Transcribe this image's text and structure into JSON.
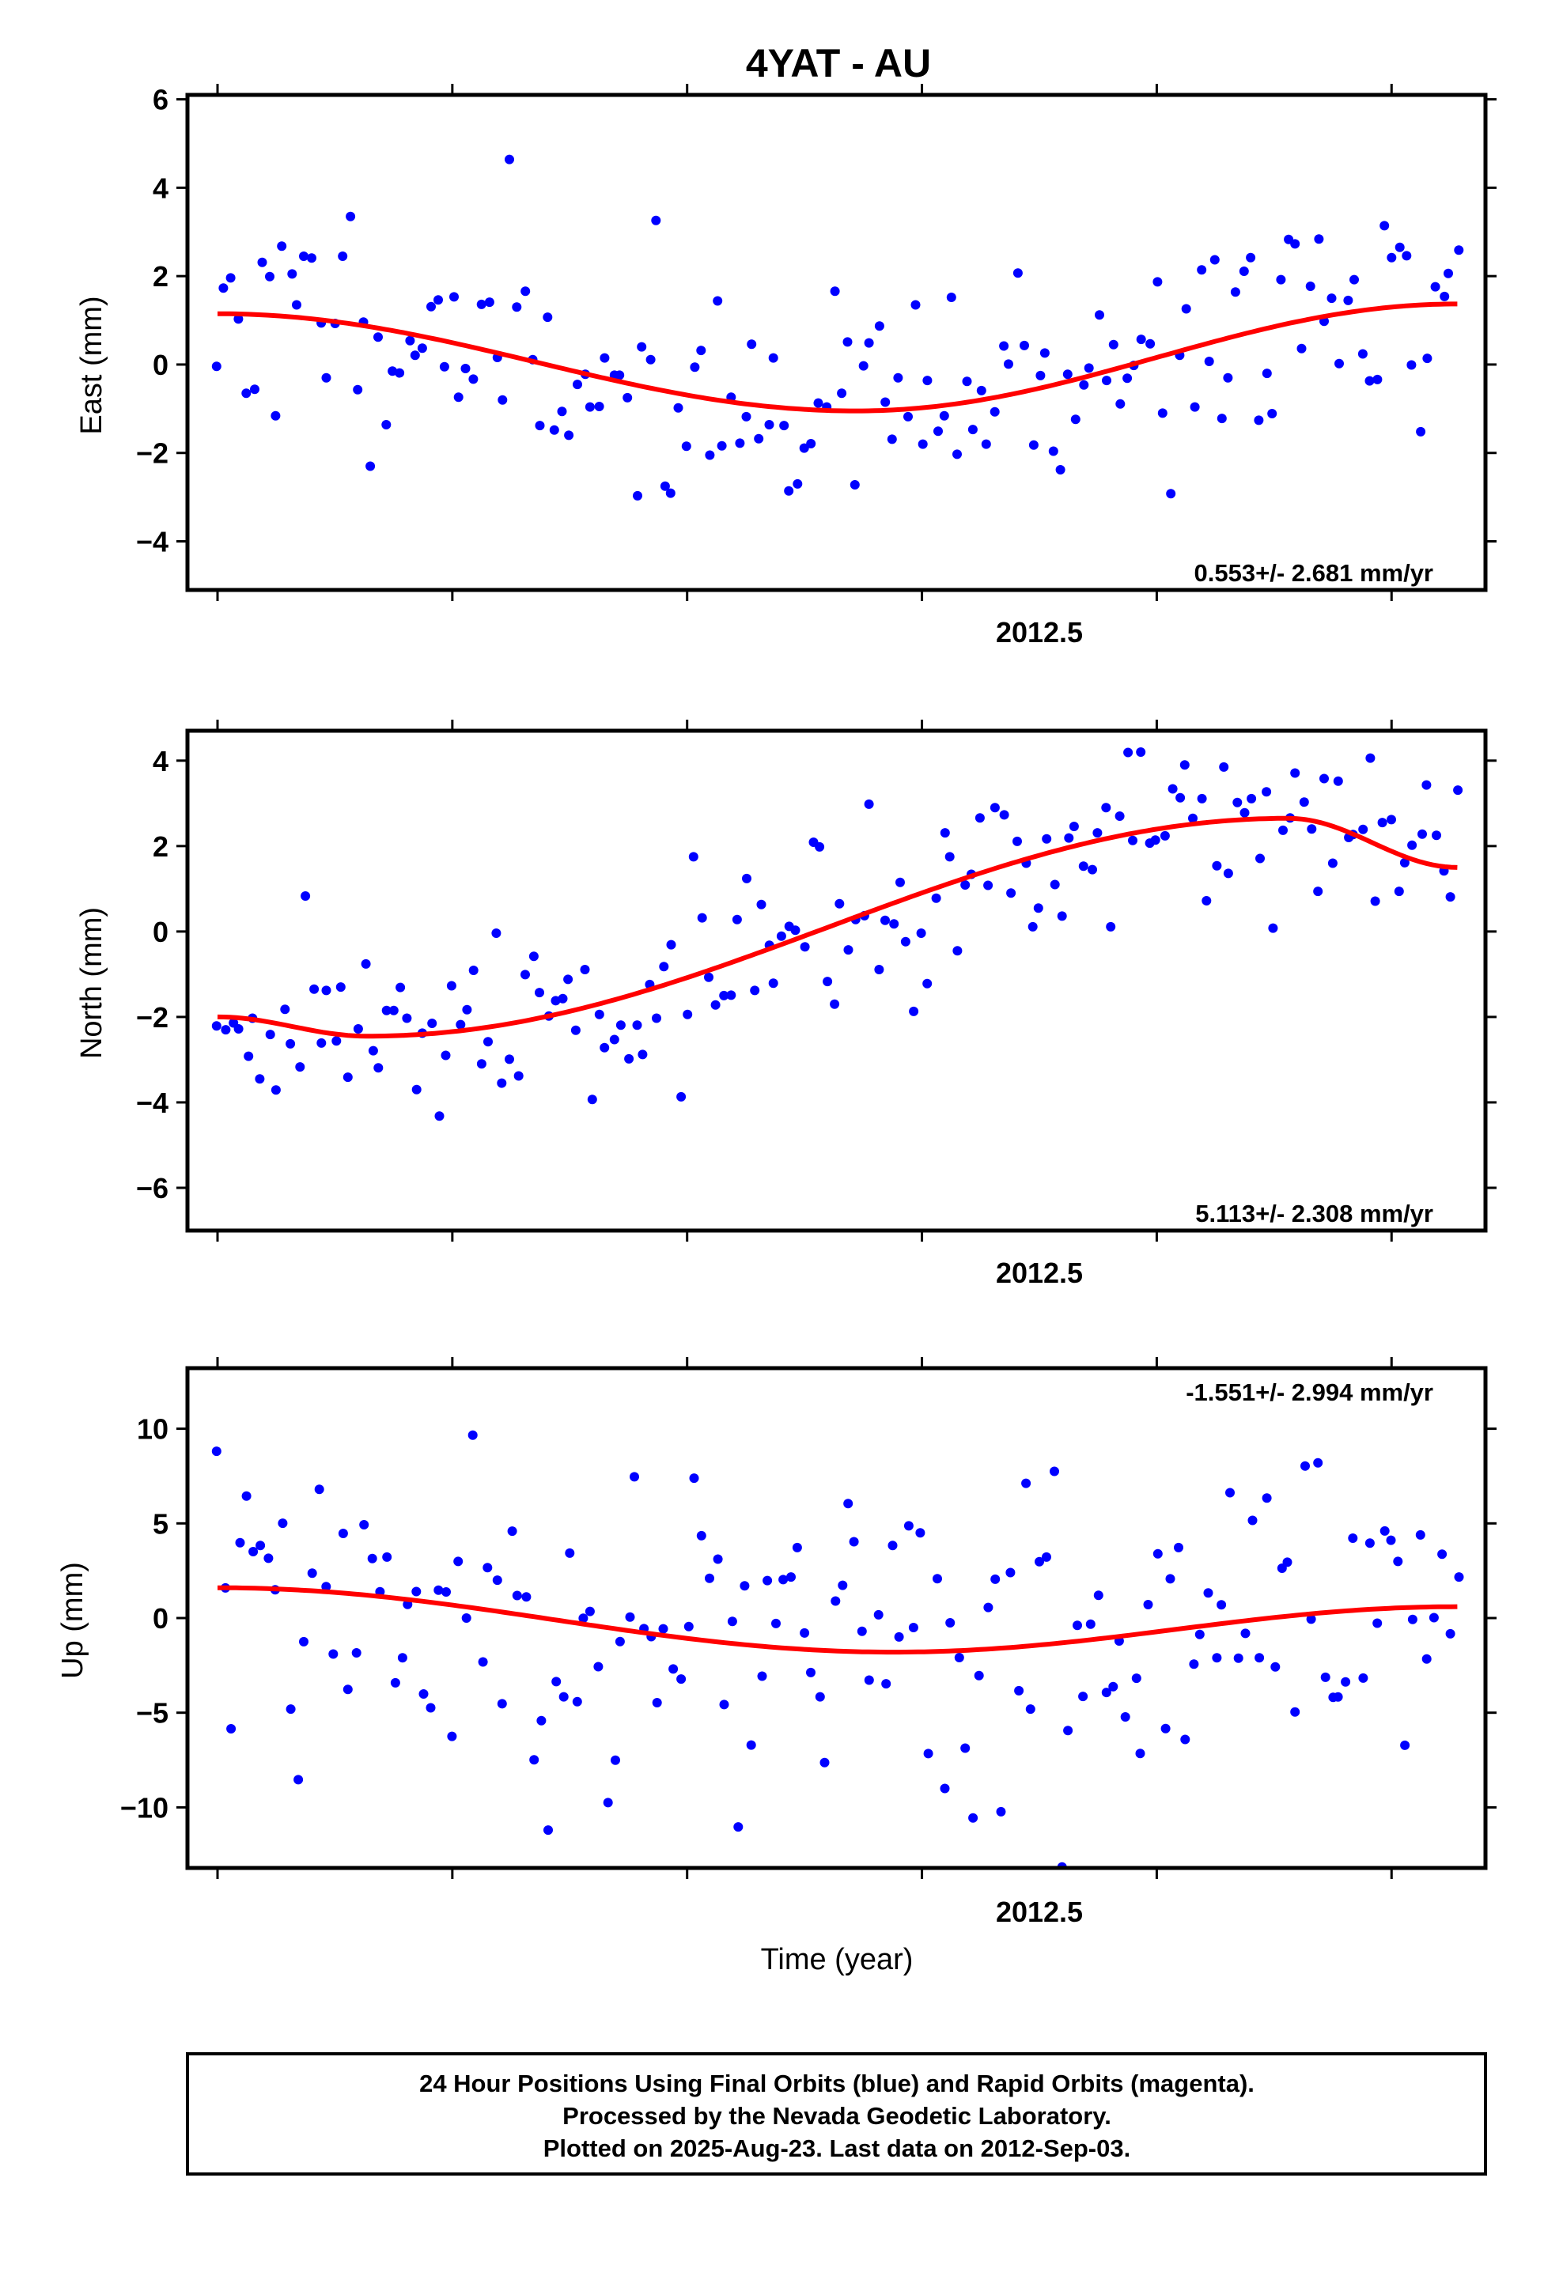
{
  "title": "4YAT - AU",
  "xlabel": "Time (year)",
  "footer": [
    "24 Hour Positions Using Final Orbits (blue) and Rapid Orbits (magenta).",
    "Processed by the Nevada Geodetic Laboratory.",
    "Plotted on 2025-Aug-23. Last data on 2012-Sep-03."
  ],
  "colors": {
    "data": "#0000ff",
    "fit": "#ff0000",
    "frame": "#000000"
  },
  "chart_data": [
    {
      "type": "scatter",
      "ylabel": "East (mm)",
      "ylim": [
        -5.1,
        6.1
      ],
      "yticks": [
        6,
        4,
        2,
        0,
        -2,
        -4
      ],
      "xlim": [
        2011.984,
        2012.675
      ],
      "xticks": [
        2012.0,
        2012.125,
        2012.25,
        2012.375,
        2012.5,
        2012.625
      ],
      "xticklabels": {
        "2012.5": "2012.5"
      },
      "rate": "0.553+/- 2.681 mm/yr",
      "fit_curve": {
        "x": [
          2012.0,
          2012.66
        ],
        "y_start": 1.15,
        "y_min": -1.05,
        "x_min": 2012.34,
        "y_end": 1.37
      },
      "series": [
        {
          "values": []
        }
      ]
    },
    {
      "type": "scatter",
      "ylabel": "North (mm)",
      "ylim": [
        -7.0,
        4.7
      ],
      "yticks": [
        4,
        2,
        0,
        -2,
        -4,
        -6
      ],
      "xlim": [
        2011.984,
        2012.675
      ],
      "xticks": [
        2012.0,
        2012.125,
        2012.25,
        2012.375,
        2012.5,
        2012.625
      ],
      "xticklabels": {
        "2012.5": "2012.5"
      },
      "rate": "5.113+/- 2.308 mm/yr",
      "fit_curve": {
        "x": [
          2012.0,
          2012.66
        ],
        "y_start": -2.0,
        "y_min": -2.45,
        "x_min": 2012.08,
        "y_max": 2.65,
        "x_max": 2012.57,
        "y_end": 1.5
      },
      "series": [
        {
          "values": []
        }
      ]
    },
    {
      "type": "scatter",
      "ylabel": "Up (mm)",
      "ylim": [
        -13.2,
        13.2
      ],
      "yticks": [
        10,
        5,
        0,
        -5,
        -10
      ],
      "xlim": [
        2011.984,
        2012.675
      ],
      "xticks": [
        2012.0,
        2012.125,
        2012.25,
        2012.375,
        2012.5,
        2012.625
      ],
      "xticklabels": {
        "2012.5": "2012.5"
      },
      "rate": "-1.551+/- 2.994 mm/yr",
      "fit_curve": {
        "x": [
          2012.0,
          2012.66
        ],
        "y_start": 1.6,
        "y_min": -1.8,
        "x_min": 2012.36,
        "y_end": 0.6
      },
      "series": [
        {
          "values": []
        }
      ]
    }
  ]
}
